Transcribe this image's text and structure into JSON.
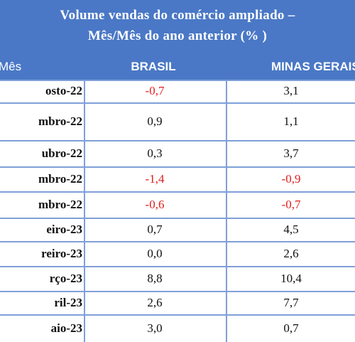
{
  "title": {
    "line1": "Volume vendas do comércio ampliado –",
    "line2": "Mês/Mês do ano anterior (% )"
  },
  "headers": {
    "mes": "Mês",
    "brasil": "BRASIL",
    "minas": "MINAS GERAIS"
  },
  "colors": {
    "header_bg": "#4a78c6",
    "negative": "#e0201c",
    "grid": "#7f9fd9"
  },
  "rows": [
    {
      "mes": "osto-22",
      "brasil": "-0,7",
      "brasil_neg": true,
      "minas": "3,1",
      "minas_neg": false
    },
    {
      "mes": "mbro-22",
      "brasil": "0,9",
      "brasil_neg": false,
      "minas": "1,1",
      "minas_neg": false
    },
    {
      "mes": "ubro-22",
      "brasil": "0,3",
      "brasil_neg": false,
      "minas": "3,7",
      "minas_neg": false
    },
    {
      "mes": "mbro-22",
      "brasil": "-1,4",
      "brasil_neg": true,
      "minas": "-0,9",
      "minas_neg": true
    },
    {
      "mes": "mbro-22",
      "brasil": "-0,6",
      "brasil_neg": true,
      "minas": "-0,7",
      "minas_neg": true
    },
    {
      "mes": "eiro-23",
      "brasil": "0,7",
      "brasil_neg": false,
      "minas": "4,5",
      "minas_neg": false
    },
    {
      "mes": "reiro-23",
      "brasil": "0,0",
      "brasil_neg": false,
      "minas": "2,6",
      "minas_neg": false
    },
    {
      "mes": "rço-23",
      "brasil": "8,8",
      "brasil_neg": false,
      "minas": "10,4",
      "minas_neg": false
    },
    {
      "mes": "ril-23",
      "brasil": "2,6",
      "brasil_neg": false,
      "minas": "7,7",
      "minas_neg": false
    },
    {
      "mes": "aio-23",
      "brasil": "3,0",
      "brasil_neg": false,
      "minas": "0,7",
      "minas_neg": false
    }
  ]
}
